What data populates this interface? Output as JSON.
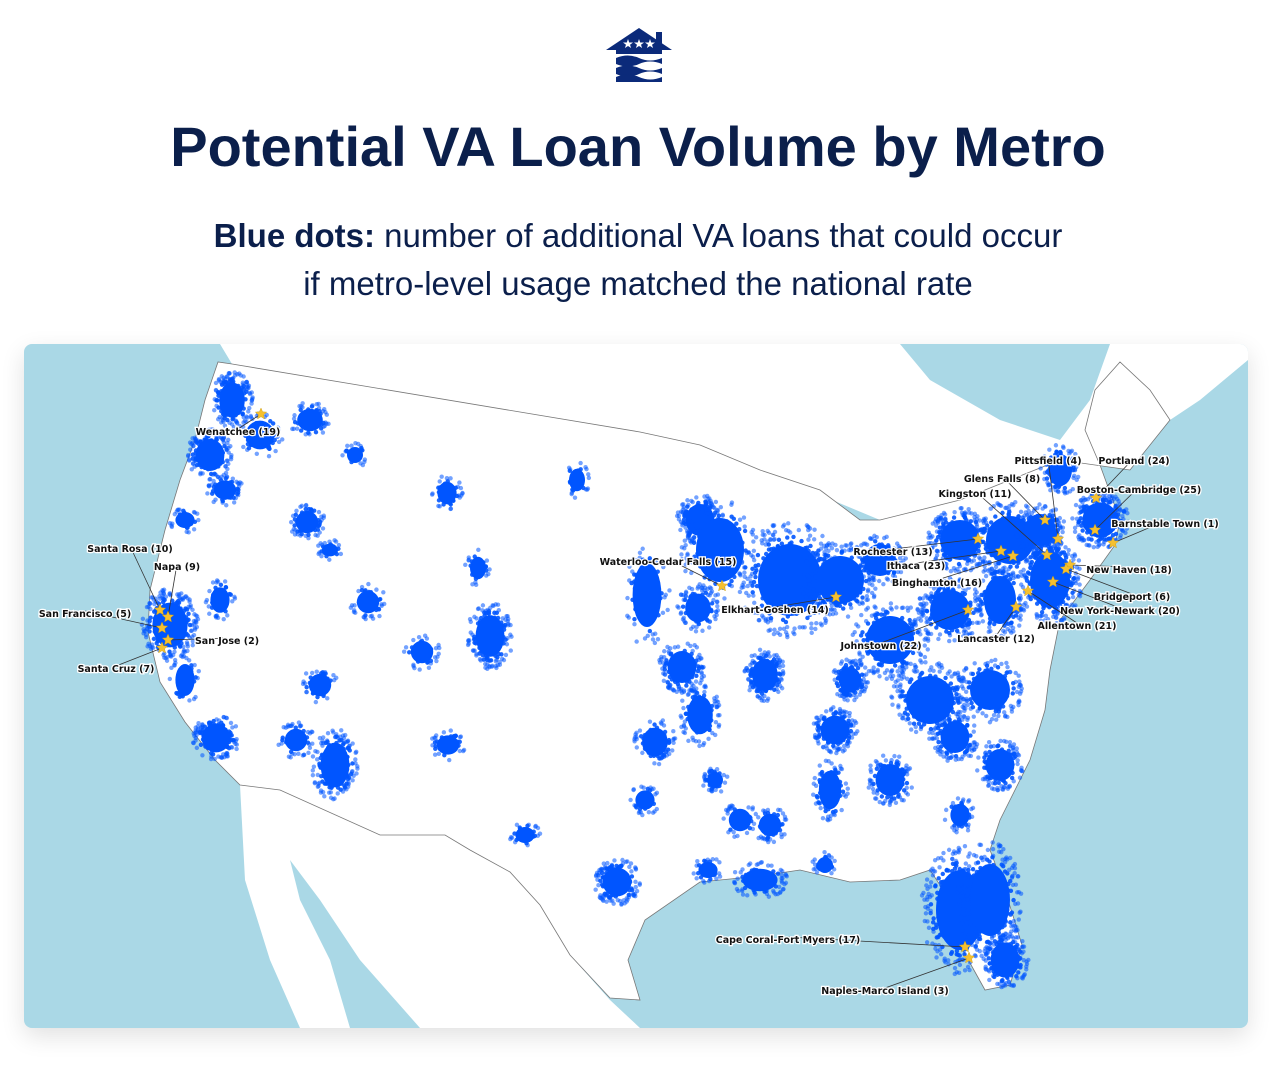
{
  "logo": {
    "icon": "house-stars-waves-logo",
    "color": "#0b2a7a"
  },
  "title": "Potential VA Loan Volume by Metro",
  "subtitle": {
    "bold": "Blue dots:",
    "line1_rest": " number of additional VA loans that could occur",
    "line2": "if metro-level usage matched the national rate"
  },
  "map": {
    "ocean_color": "#aad8e6",
    "land_color": "#ffffff",
    "dot_color": "#0055ff",
    "star_color": "#f5c030",
    "metros": [
      {
        "label": "Wenatchee (19)"
      },
      {
        "label": "Santa Rosa (10)"
      },
      {
        "label": "Napa (9)"
      },
      {
        "label": "San Francisco (5)"
      },
      {
        "label": "San Jose (2)"
      },
      {
        "label": "Santa Cruz (7)"
      },
      {
        "label": "Waterloo-Cedar Falls (15)"
      },
      {
        "label": "Elkhart-Goshen (14)"
      },
      {
        "label": "Pittsfield (4)"
      },
      {
        "label": "Portland (24)"
      },
      {
        "label": "Glens Falls (8)"
      },
      {
        "label": "Boston-Cambridge (25)"
      },
      {
        "label": "Kingston (11)"
      },
      {
        "label": "Barnstable Town (1)"
      },
      {
        "label": "Rochester (13)"
      },
      {
        "label": "Ithaca (23)"
      },
      {
        "label": "New Haven (18)"
      },
      {
        "label": "Binghamton (16)"
      },
      {
        "label": "Bridgeport (6)"
      },
      {
        "label": "New York-Newark (20)"
      },
      {
        "label": "Johnstown (22)"
      },
      {
        "label": "Allentown (21)"
      },
      {
        "label": "Lancaster (12)"
      },
      {
        "label": "Cape Coral-Fort Myers (17)"
      },
      {
        "label": "Naples-Marco Island (3)"
      }
    ]
  }
}
